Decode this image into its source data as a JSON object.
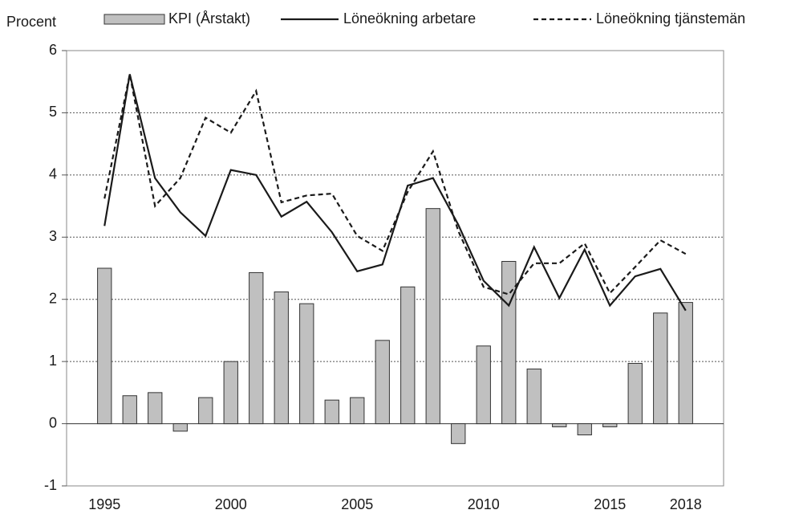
{
  "chart_data": {
    "type": "combo",
    "y_label": "Procent",
    "x": [
      1995,
      1996,
      1997,
      1998,
      1999,
      2000,
      2001,
      2002,
      2003,
      2004,
      2005,
      2006,
      2007,
      2008,
      2009,
      2010,
      2011,
      2012,
      2013,
      2014,
      2015,
      2016,
      2017,
      2018
    ],
    "xlim": [
      1993.5,
      2019.5
    ],
    "xticks": [
      1995,
      2000,
      2005,
      2010,
      2015,
      2018
    ],
    "ylim": [
      -1,
      6
    ],
    "yticks": [
      -1,
      0,
      1,
      2,
      3,
      4,
      5,
      6
    ],
    "grid": true,
    "legend": "top",
    "series": [
      {
        "name": "KPI (Årstakt)",
        "type": "bar",
        "color": "#c0c0c0",
        "values": [
          2.5,
          0.45,
          0.5,
          -0.12,
          0.42,
          1.0,
          2.43,
          2.12,
          1.93,
          0.38,
          0.42,
          1.34,
          2.2,
          3.46,
          -0.32,
          1.25,
          2.61,
          0.88,
          -0.05,
          -0.18,
          -0.05,
          0.97,
          1.78,
          1.95
        ]
      },
      {
        "name": "Löneökning arbetare",
        "type": "line",
        "color": "#1a1a1a",
        "dash": false,
        "values": [
          3.18,
          5.62,
          3.95,
          3.4,
          3.02,
          4.08,
          4.0,
          3.33,
          3.57,
          3.08,
          2.45,
          2.56,
          3.83,
          3.95,
          3.2,
          2.3,
          1.9,
          2.84,
          2.02,
          2.8,
          1.9,
          2.37,
          2.49,
          1.82
        ]
      },
      {
        "name": "Löneökning tjänstemän",
        "type": "line",
        "color": "#1a1a1a",
        "dash": true,
        "values": [
          3.62,
          5.62,
          3.5,
          3.95,
          4.92,
          4.68,
          5.35,
          3.56,
          3.67,
          3.7,
          3.02,
          2.78,
          3.73,
          4.38,
          3.1,
          2.2,
          2.08,
          2.58,
          2.58,
          2.9,
          2.1,
          2.52,
          2.95,
          2.73
        ]
      }
    ]
  }
}
